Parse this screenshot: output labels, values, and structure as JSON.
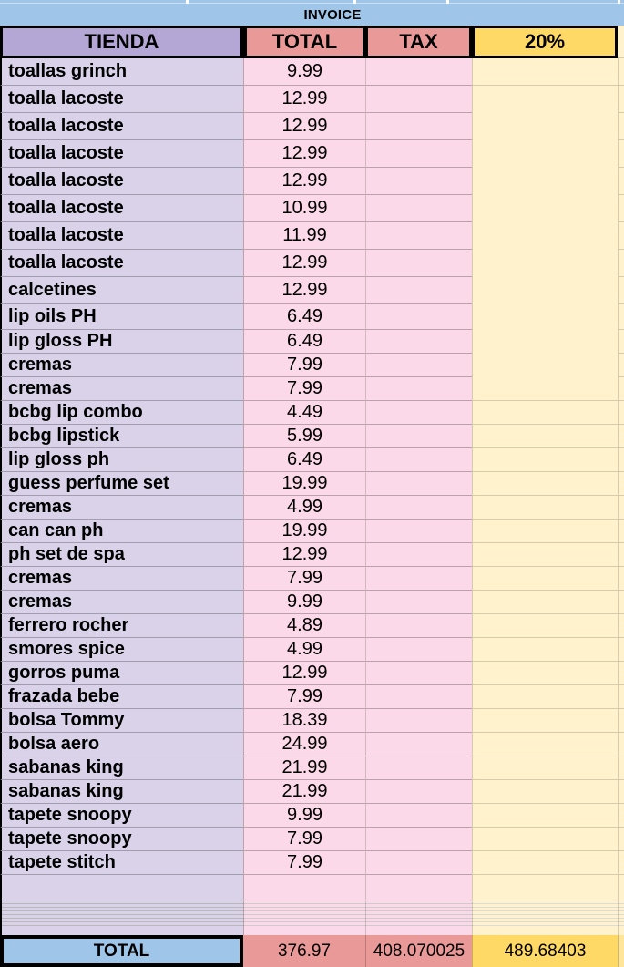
{
  "title": "INVOICE",
  "columns": {
    "tienda": "TIENDA",
    "total": "TOTAL",
    "tax": "TAX",
    "pct": "20%"
  },
  "rows": [
    {
      "tienda": "toallas grinch",
      "total": "9.99"
    },
    {
      "tienda": "toalla lacoste",
      "total": "12.99"
    },
    {
      "tienda": "toalla lacoste",
      "total": "12.99"
    },
    {
      "tienda": "toalla lacoste",
      "total": "12.99"
    },
    {
      "tienda": "toalla lacoste",
      "total": "12.99"
    },
    {
      "tienda": "toalla lacoste",
      "total": "10.99"
    },
    {
      "tienda": "toalla lacoste",
      "total": "11.99"
    },
    {
      "tienda": "toalla lacoste",
      "total": "12.99"
    },
    {
      "tienda": "calcetines",
      "total": "12.99"
    },
    {
      "tienda": "lip oils PH",
      "total": "6.49"
    },
    {
      "tienda": "lip gloss PH",
      "total": "6.49"
    },
    {
      "tienda": "cremas",
      "total": "7.99"
    },
    {
      "tienda": "cremas",
      "total": "7.99"
    },
    {
      "tienda": "bcbg lip combo",
      "total": "4.49"
    },
    {
      "tienda": "bcbg lipstick",
      "total": "5.99"
    },
    {
      "tienda": "lip gloss ph",
      "total": "6.49"
    },
    {
      "tienda": "guess perfume set",
      "total": "19.99"
    },
    {
      "tienda": "cremas",
      "total": "4.99"
    },
    {
      "tienda": "can can ph",
      "total": "19.99"
    },
    {
      "tienda": "ph set de spa",
      "total": "12.99"
    },
    {
      "tienda": "cremas",
      "total": "7.99"
    },
    {
      "tienda": "cremas",
      "total": "9.99"
    },
    {
      "tienda": "ferrero rocher",
      "total": "4.89"
    },
    {
      "tienda": "smores spice",
      "total": "4.99"
    },
    {
      "tienda": "gorros puma",
      "total": "12.99"
    },
    {
      "tienda": "frazada bebe",
      "total": "7.99"
    },
    {
      "tienda": "bolsa Tommy",
      "total": "18.39"
    },
    {
      "tienda": "bolsa aero",
      "total": "24.99"
    },
    {
      "tienda": "sabanas king",
      "total": "21.99"
    },
    {
      "tienda": "sabanas king",
      "total": "21.99"
    },
    {
      "tienda": "tapete snoopy",
      "total": "9.99"
    },
    {
      "tienda": "tapete snoopy",
      "total": "7.99"
    },
    {
      "tienda": "tapete stitch",
      "total": "7.99"
    }
  ],
  "footer": {
    "label": "TOTAL",
    "total": "376.97",
    "tax": "408.070025",
    "pct": "489.68403"
  },
  "colors": {
    "band_blue": "#9fc5e8",
    "header_purple": "#b4a7d6",
    "row_lavender": "#d9d2e9",
    "header_salmon": "#ea9999",
    "price_pink": "#fcd9e8",
    "header_yellow": "#ffd966",
    "body_yellow": "#fff2cc",
    "sliver_yellow": "#ffe599",
    "border_black": "#000000"
  }
}
